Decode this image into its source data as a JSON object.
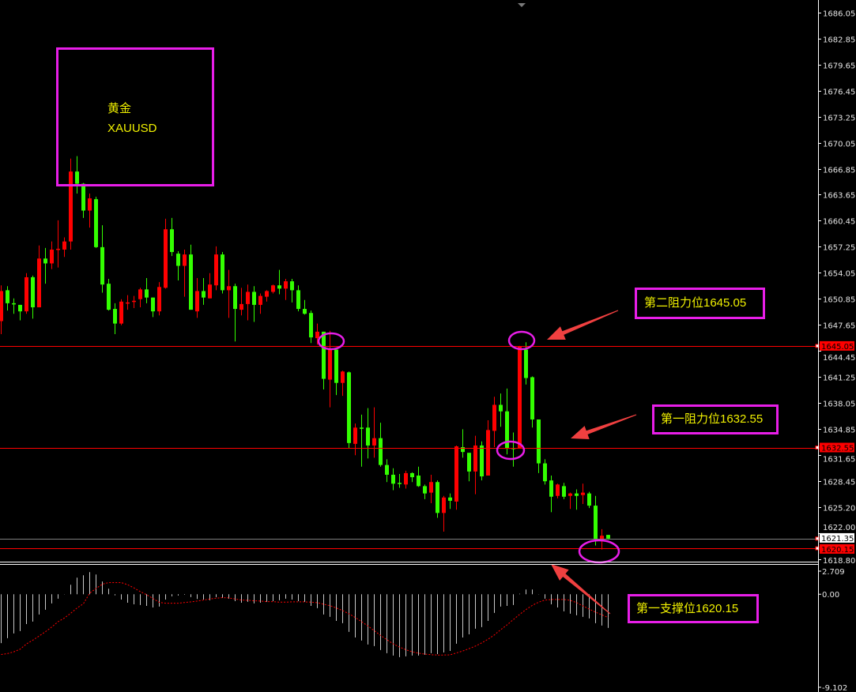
{
  "chart_data": {
    "type": "candlestick",
    "symbol_label": "黄金",
    "symbol": "XAUUSD",
    "up_color": "#ff0000",
    "down_color": "#33ff00",
    "ylim": [
      1618.8,
      1686.05
    ],
    "y_ticks": [
      "1686.05",
      "1682.85",
      "1679.65",
      "1676.45",
      "1673.25",
      "1670.05",
      "1666.85",
      "1663.65",
      "1660.45",
      "1657.25",
      "1654.05",
      "1650.85",
      "1647.65",
      "1644.45",
      "1641.25",
      "1638.05",
      "1634.85",
      "1631.65",
      "1628.45",
      "1625.20",
      "1622.00",
      "1618.80"
    ],
    "grid": false,
    "ohlc": [
      [
        1648.1,
        1652.5,
        1646.5,
        1651.8
      ],
      [
        1651.9,
        1652.4,
        1649.4,
        1650.3
      ],
      [
        1650.3,
        1650.9,
        1649.0,
        1650.2
      ],
      [
        1650.1,
        1650.1,
        1648.2,
        1649.3
      ],
      [
        1649.3,
        1654.0,
        1649.0,
        1653.5
      ],
      [
        1653.5,
        1653.7,
        1648.4,
        1649.8
      ],
      [
        1649.8,
        1657.4,
        1649.8,
        1655.8
      ],
      [
        1655.8,
        1657.1,
        1652.7,
        1655.2
      ],
      [
        1655.2,
        1657.9,
        1654.5,
        1656.9
      ],
      [
        1656.9,
        1660.5,
        1654.7,
        1657.0
      ],
      [
        1656.9,
        1658.4,
        1656.0,
        1657.9
      ],
      [
        1657.9,
        1668.1,
        1656.9,
        1666.5
      ],
      [
        1666.5,
        1668.4,
        1663.8,
        1665.0
      ],
      [
        1665.0,
        1665.1,
        1660.8,
        1661.7
      ],
      [
        1661.7,
        1663.8,
        1659.6,
        1663.2
      ],
      [
        1663.1,
        1663.4,
        1657.1,
        1657.2
      ],
      [
        1657.2,
        1659.9,
        1651.6,
        1652.6
      ],
      [
        1652.7,
        1653.3,
        1649.4,
        1649.5
      ],
      [
        1649.6,
        1650.3,
        1646.5,
        1647.8
      ],
      [
        1647.8,
        1650.8,
        1647.6,
        1650.5
      ],
      [
        1650.3,
        1651.3,
        1649.5,
        1650.4
      ],
      [
        1650.5,
        1651.2,
        1649.7,
        1650.6
      ],
      [
        1650.8,
        1652.2,
        1649.8,
        1652.0
      ],
      [
        1652.0,
        1653.4,
        1650.3,
        1651.0
      ],
      [
        1651.0,
        1651.0,
        1648.6,
        1649.3
      ],
      [
        1649.3,
        1652.9,
        1648.8,
        1652.3
      ],
      [
        1652.2,
        1660.7,
        1652.1,
        1659.4
      ],
      [
        1659.4,
        1660.8,
        1656.1,
        1656.6
      ],
      [
        1656.4,
        1656.7,
        1653.1,
        1654.9
      ],
      [
        1654.9,
        1656.9,
        1651.1,
        1656.3
      ],
      [
        1656.3,
        1657.5,
        1649.5,
        1649.5
      ],
      [
        1649.3,
        1653.4,
        1648.5,
        1651.8
      ],
      [
        1651.8,
        1653.4,
        1650.1,
        1651.0
      ],
      [
        1650.9,
        1654.0,
        1650.9,
        1652.6
      ],
      [
        1652.5,
        1657.3,
        1651.9,
        1656.3
      ],
      [
        1656.3,
        1656.6,
        1651.5,
        1651.9
      ],
      [
        1651.9,
        1654.4,
        1648.5,
        1652.4
      ],
      [
        1652.4,
        1652.7,
        1645.6,
        1649.6
      ],
      [
        1649.5,
        1652.2,
        1648.8,
        1650.2
      ],
      [
        1650.2,
        1652.6,
        1648.2,
        1651.7
      ],
      [
        1651.7,
        1652.4,
        1648.0,
        1650.1
      ],
      [
        1650.1,
        1651.5,
        1649.0,
        1651.2
      ],
      [
        1651.1,
        1651.9,
        1650.5,
        1651.8
      ],
      [
        1651.7,
        1652.6,
        1651.5,
        1652.5
      ],
      [
        1652.5,
        1654.4,
        1651.4,
        1652.1
      ],
      [
        1652.1,
        1653.3,
        1650.7,
        1653.0
      ],
      [
        1653.0,
        1653.3,
        1650.4,
        1651.9
      ],
      [
        1651.9,
        1652.5,
        1649.3,
        1649.6
      ],
      [
        1649.6,
        1650.7,
        1648.9,
        1649.0
      ],
      [
        1649.1,
        1649.4,
        1645.4,
        1646.1
      ],
      [
        1646.0,
        1647.8,
        1645.2,
        1646.8
      ],
      [
        1646.8,
        1646.8,
        1639.7,
        1641.0
      ],
      [
        1640.9,
        1646.9,
        1637.5,
        1644.6
      ],
      [
        1644.6,
        1644.6,
        1639.0,
        1640.5
      ],
      [
        1640.5,
        1642.0,
        1638.9,
        1641.9
      ],
      [
        1641.8,
        1641.9,
        1632.5,
        1633.1
      ],
      [
        1633.0,
        1635.5,
        1631.6,
        1635.0
      ],
      [
        1635.0,
        1636.6,
        1630.2,
        1634.9
      ],
      [
        1635.0,
        1637.4,
        1631.2,
        1632.8
      ],
      [
        1632.8,
        1637.5,
        1631.3,
        1633.7
      ],
      [
        1633.7,
        1635.6,
        1630.2,
        1630.4
      ],
      [
        1630.4,
        1631.1,
        1628.3,
        1629.2
      ],
      [
        1629.2,
        1630.0,
        1627.3,
        1628.1
      ],
      [
        1628.2,
        1629.3,
        1627.6,
        1628.1
      ],
      [
        1628.0,
        1629.7,
        1627.5,
        1629.4
      ],
      [
        1629.4,
        1629.5,
        1628.3,
        1628.9
      ],
      [
        1629.1,
        1630.2,
        1627.7,
        1627.8
      ],
      [
        1627.8,
        1628.0,
        1626.2,
        1626.9
      ],
      [
        1627.0,
        1629.2,
        1625.7,
        1628.3
      ],
      [
        1628.3,
        1628.5,
        1623.9,
        1624.5
      ],
      [
        1624.5,
        1626.6,
        1622.2,
        1626.4
      ],
      [
        1626.4,
        1626.9,
        1625.0,
        1626.0
      ],
      [
        1625.9,
        1632.8,
        1624.9,
        1632.7
      ],
      [
        1632.6,
        1634.8,
        1631.3,
        1632.0
      ],
      [
        1631.9,
        1631.9,
        1628.4,
        1629.6
      ],
      [
        1629.6,
        1634.0,
        1626.8,
        1632.8
      ],
      [
        1632.8,
        1633.3,
        1628.5,
        1629.0
      ],
      [
        1629.1,
        1635.9,
        1629.1,
        1634.7
      ],
      [
        1634.6,
        1638.8,
        1632.6,
        1637.8
      ],
      [
        1637.8,
        1639.2,
        1635.1,
        1637.0
      ],
      [
        1637.0,
        1639.8,
        1631.7,
        1632.4
      ],
      [
        1632.5,
        1634.4,
        1630.2,
        1632.4
      ],
      [
        1632.4,
        1645.05,
        1632.4,
        1645.0
      ],
      [
        1644.6,
        1645.5,
        1640.3,
        1641.1
      ],
      [
        1641.2,
        1641.3,
        1635.0,
        1636.0
      ],
      [
        1636.0,
        1636.0,
        1629.4,
        1630.6
      ],
      [
        1630.6,
        1631.1,
        1628.0,
        1628.4
      ],
      [
        1628.5,
        1629.1,
        1624.6,
        1626.5
      ],
      [
        1626.6,
        1628.1,
        1626.3,
        1628.0
      ],
      [
        1627.8,
        1628.2,
        1626.2,
        1626.5
      ],
      [
        1626.6,
        1627.0,
        1625.0,
        1626.9
      ],
      [
        1626.9,
        1627.4,
        1624.9,
        1626.6
      ],
      [
        1626.7,
        1628.1,
        1625.6,
        1627.0
      ],
      [
        1626.9,
        1627.1,
        1625.1,
        1625.4
      ],
      [
        1625.4,
        1626.6,
        1620.5,
        1621.3
      ],
      [
        1621.3,
        1622.5,
        1620.0,
        1621.7
      ],
      [
        1621.8,
        1621.8,
        1621.2,
        1621.35
      ]
    ],
    "price_lines": [
      {
        "value": 1645.05,
        "label": "1645.05",
        "color": "#ff0000"
      },
      {
        "value": 1632.55,
        "label": "1632.55",
        "color": "#ff0000"
      },
      {
        "value": 1620.15,
        "label": "1620.15",
        "color": "#ff0000"
      }
    ],
    "current_price": {
      "value": 1621.35,
      "label": "1621.35",
      "color": "#808080"
    },
    "annotations": [
      {
        "text": "第二阻力位1645.05",
        "target_price": 1645.05,
        "target_bar": 82
      },
      {
        "text": "第一阻力位1632.55",
        "target_price": 1632.55,
        "target_bar": 80
      },
      {
        "text": "第一支撑位1620.15",
        "target_price": 1620.15,
        "target_bar": 95
      }
    ],
    "circled_bars": [
      {
        "bar": 52,
        "price": 1645.6
      },
      {
        "bar": 82,
        "price": 1645.7
      },
      {
        "bar": 80,
        "price": 1632.3
      },
      {
        "bar": 95,
        "price": 1619.8
      }
    ],
    "annotation_color": "#e81ee8",
    "arrow_color": "#f04040",
    "text_color": "#f0f000",
    "oscillator": {
      "type": "macd",
      "ylim": [
        -9.102,
        2.709
      ],
      "y_ticks": [
        "2.709",
        "0.00",
        "-9.102"
      ],
      "histogram_color": "#c8c8c8",
      "signal_color": "#ff0000",
      "histogram": [
        -4.63,
        -4.16,
        -3.71,
        -3.49,
        -2.82,
        -2.59,
        -1.92,
        -1.47,
        -0.87,
        -0.42,
        0.02,
        0.9,
        1.57,
        1.79,
        2.09,
        1.87,
        1.2,
        0.52,
        -0.1,
        -0.5,
        -0.8,
        -0.95,
        -1.02,
        -1.1,
        -1.25,
        -1.17,
        -0.5,
        -0.2,
        -0.12,
        -0.05,
        -0.27,
        -0.45,
        -0.5,
        -0.57,
        -0.27,
        -0.35,
        -0.42,
        -0.65,
        -0.8,
        -0.72,
        -0.87,
        -0.8,
        -0.72,
        -0.65,
        -0.57,
        -0.42,
        -0.5,
        -0.65,
        -0.72,
        -1.1,
        -1.32,
        -1.92,
        -2.14,
        -2.52,
        -2.74,
        -3.56,
        -4.09,
        -4.38,
        -4.76,
        -4.91,
        -5.28,
        -5.58,
        -5.8,
        -5.95,
        -5.88,
        -5.8,
        -5.8,
        -5.73,
        -5.58,
        -5.66,
        -5.51,
        -5.36,
        -4.68,
        -4.09,
        -3.79,
        -3.26,
        -3.11,
        -2.52,
        -1.77,
        -1.17,
        -1.1,
        -1.02,
        0.05,
        0.45,
        0.45,
        0.02,
        -0.42,
        -0.95,
        -1.25,
        -1.62,
        -1.84,
        -1.99,
        -2.14,
        -2.29,
        -2.74,
        -2.96,
        -3.19
      ],
      "signal": [
        -5.7,
        -5.62,
        -5.45,
        -5.2,
        -4.7,
        -4.35,
        -3.95,
        -3.55,
        -3.1,
        -2.6,
        -2.25,
        -1.8,
        -1.3,
        -0.9,
        0.1,
        0.55,
        0.95,
        1.1,
        1.1,
        1.1,
        0.9,
        0.6,
        0.25,
        -0.05,
        -0.4,
        -0.77,
        -0.85,
        -0.85,
        -0.85,
        -0.78,
        -0.72,
        -0.65,
        -0.55,
        -0.45,
        -0.38,
        -0.32,
        -0.35,
        -0.45,
        -0.55,
        -0.57,
        -0.62,
        -0.65,
        -0.7,
        -0.7,
        -0.75,
        -0.75,
        -0.72,
        -0.72,
        -0.72,
        -0.75,
        -0.8,
        -0.95,
        -1.08,
        -1.3,
        -1.55,
        -1.85,
        -2.2,
        -2.6,
        -3.0,
        -3.45,
        -3.9,
        -4.3,
        -4.7,
        -5.0,
        -5.25,
        -5.45,
        -5.58,
        -5.66,
        -5.72,
        -5.75,
        -5.75,
        -5.74,
        -5.55,
        -5.37,
        -5.15,
        -4.91,
        -4.6,
        -4.26,
        -3.85,
        -3.35,
        -2.9,
        -2.4,
        -1.9,
        -1.45,
        -1.05,
        -0.75,
        -0.55,
        -0.5,
        -0.5,
        -0.5,
        -0.58,
        -0.8,
        -1.1,
        -1.4,
        -1.7,
        -1.95,
        -2.2
      ]
    }
  }
}
